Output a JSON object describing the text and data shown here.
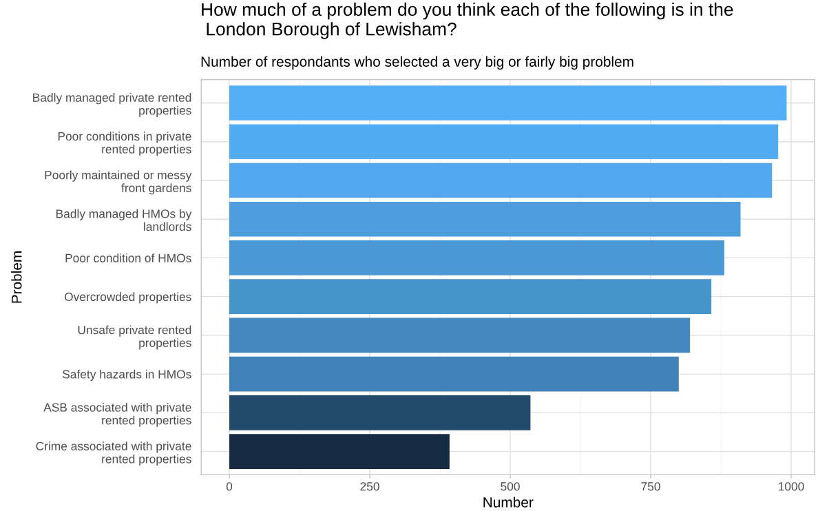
{
  "chart_data": {
    "type": "bar",
    "orientation": "horizontal",
    "title": "How much of a problem do you think each of the following is in the\n London Borough of Lewisham?",
    "subtitle": "Number of respondants who selected a very big or fairly big problem",
    "xlabel": "Number",
    "ylabel": "Problem",
    "categories": [
      "Badly managed private rented\nproperties",
      "Poor conditions in private\nrented properties",
      "Poorly maintained or messy\nfront gardens",
      "Badly managed HMOs by\nlandlords",
      "Poor condition of HMOs",
      "Overcrowded properties",
      "Unsafe private rented\nproperties",
      "Safety hazards in HMOs",
      "ASB associated with private\nrented properties",
      "Crime associated with private\nrented properties"
    ],
    "values": [
      992,
      977,
      966,
      910,
      881,
      858,
      820,
      800,
      536,
      392
    ],
    "colors": [
      "#54aef5",
      "#53abf1",
      "#52a8ee",
      "#4d9edd",
      "#4a98d4",
      "#4794cd",
      "#4488c0",
      "#4183b8",
      "#234a6b",
      "#172b43"
    ],
    "xlim": [
      -50,
      1042
    ],
    "xticks": [
      0,
      250,
      500,
      750,
      1000
    ],
    "grid": true
  }
}
